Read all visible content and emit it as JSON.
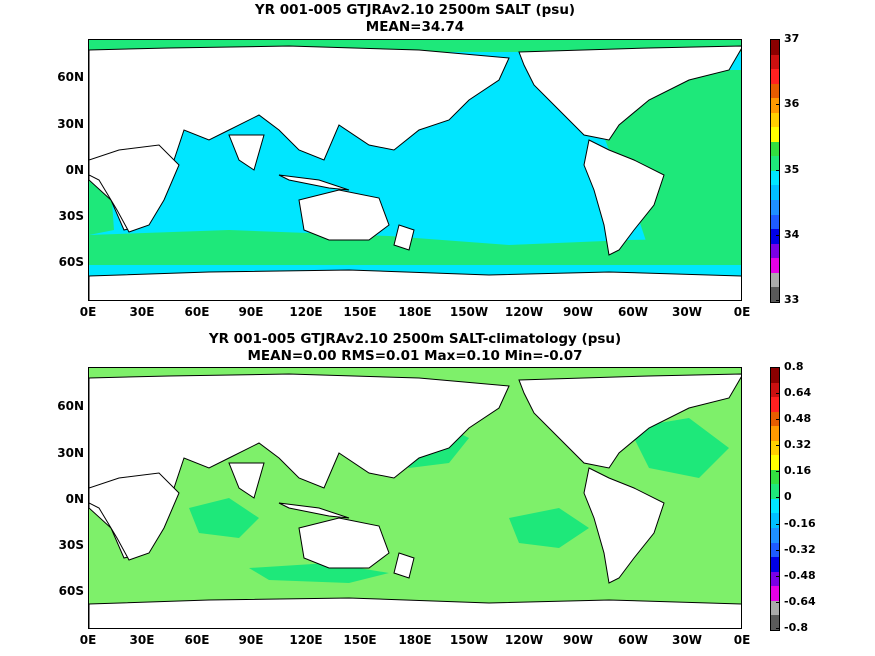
{
  "panel_top": {
    "title_line1": "YR 001-005 GTJRAv2.10 2500m SALT (psu)",
    "title_line2": "MEAN=34.74",
    "ocean_color": "#00e6ff",
    "secondary_color": "#1ee87a",
    "colorbar": {
      "labels": [
        "37",
        "36",
        "35",
        "34",
        "33"
      ],
      "colors": [
        "#8b0000",
        "#cc1010",
        "#ff2020",
        "#e65c00",
        "#ff9900",
        "#ffd000",
        "#ffff00",
        "#33e040",
        "#1ee87a",
        "#00e6ff",
        "#00bfff",
        "#1e90ff",
        "#1e5bff",
        "#0000e6",
        "#7a00e6",
        "#e600e6",
        "#aaaaaa",
        "#5a5a5a"
      ]
    }
  },
  "panel_bottom": {
    "title_line1": "YR 001-005 GTJRAv2.10 2500m SALT-climatology (psu)",
    "title_line2": "MEAN=0.00   RMS=0.01   Max=0.10   Min=-0.07",
    "ocean_color": "#7ef06a",
    "secondary_color": "#1ee87a",
    "colorbar": {
      "labels": [
        "0.8",
        "0.64",
        "0.48",
        "0.32",
        "0.16",
        "0",
        "-0.16",
        "-0.32",
        "-0.48",
        "-0.64",
        "-0.8"
      ],
      "colors": [
        "#8b0000",
        "#cc1010",
        "#ff2020",
        "#e65c00",
        "#ff9900",
        "#ffd000",
        "#ffff00",
        "#33e040",
        "#1ee87a",
        "#00e6ff",
        "#00bfff",
        "#1e90ff",
        "#1e5bff",
        "#0000e6",
        "#7a00e6",
        "#e600e6",
        "#aaaaaa",
        "#5a5a5a"
      ]
    }
  },
  "lat_labels": [
    "60N",
    "30N",
    "0N",
    "30S",
    "60S"
  ],
  "lon_labels": [
    "0E",
    "30E",
    "60E",
    "90E",
    "120E",
    "150E",
    "180E",
    "150W",
    "120W",
    "90W",
    "60W",
    "30W",
    "0E"
  ]
}
